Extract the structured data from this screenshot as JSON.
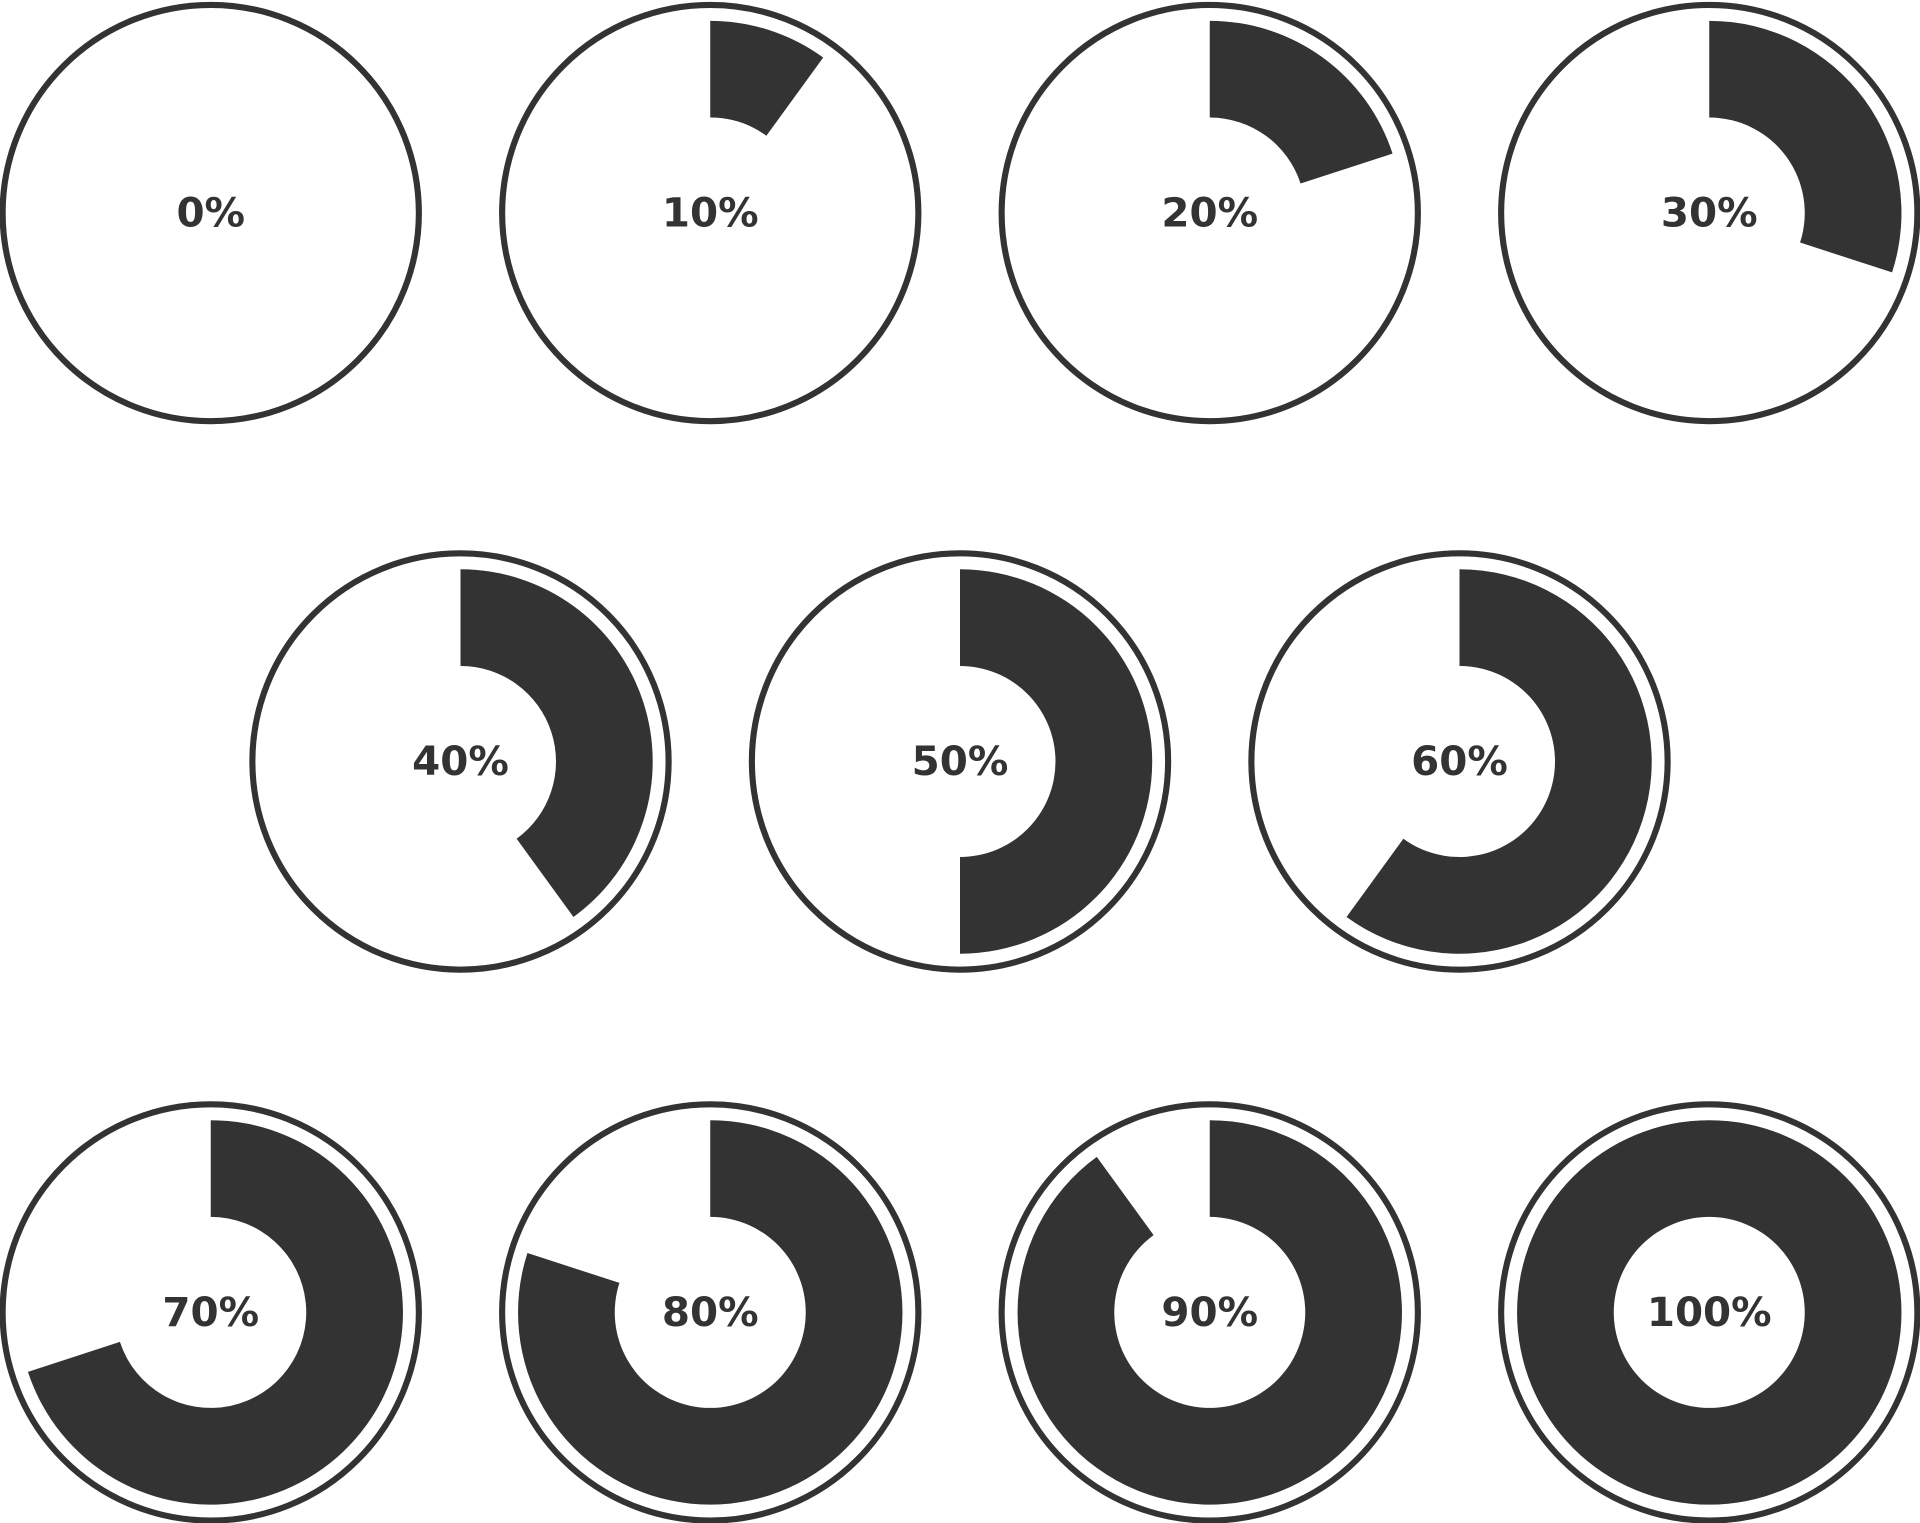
{
  "indicators": [
    {
      "label": "0%",
      "value": 0
    },
    {
      "label": "10%",
      "value": 10
    },
    {
      "label": "20%",
      "value": 20
    },
    {
      "label": "30%",
      "value": 30
    },
    {
      "label": "40%",
      "value": 40
    },
    {
      "label": "50%",
      "value": 50
    },
    {
      "label": "60%",
      "value": 60
    },
    {
      "label": "70%",
      "value": 70
    },
    {
      "label": "80%",
      "value": 80
    },
    {
      "label": "90%",
      "value": 90
    },
    {
      "label": "100%",
      "value": 100
    }
  ]
}
